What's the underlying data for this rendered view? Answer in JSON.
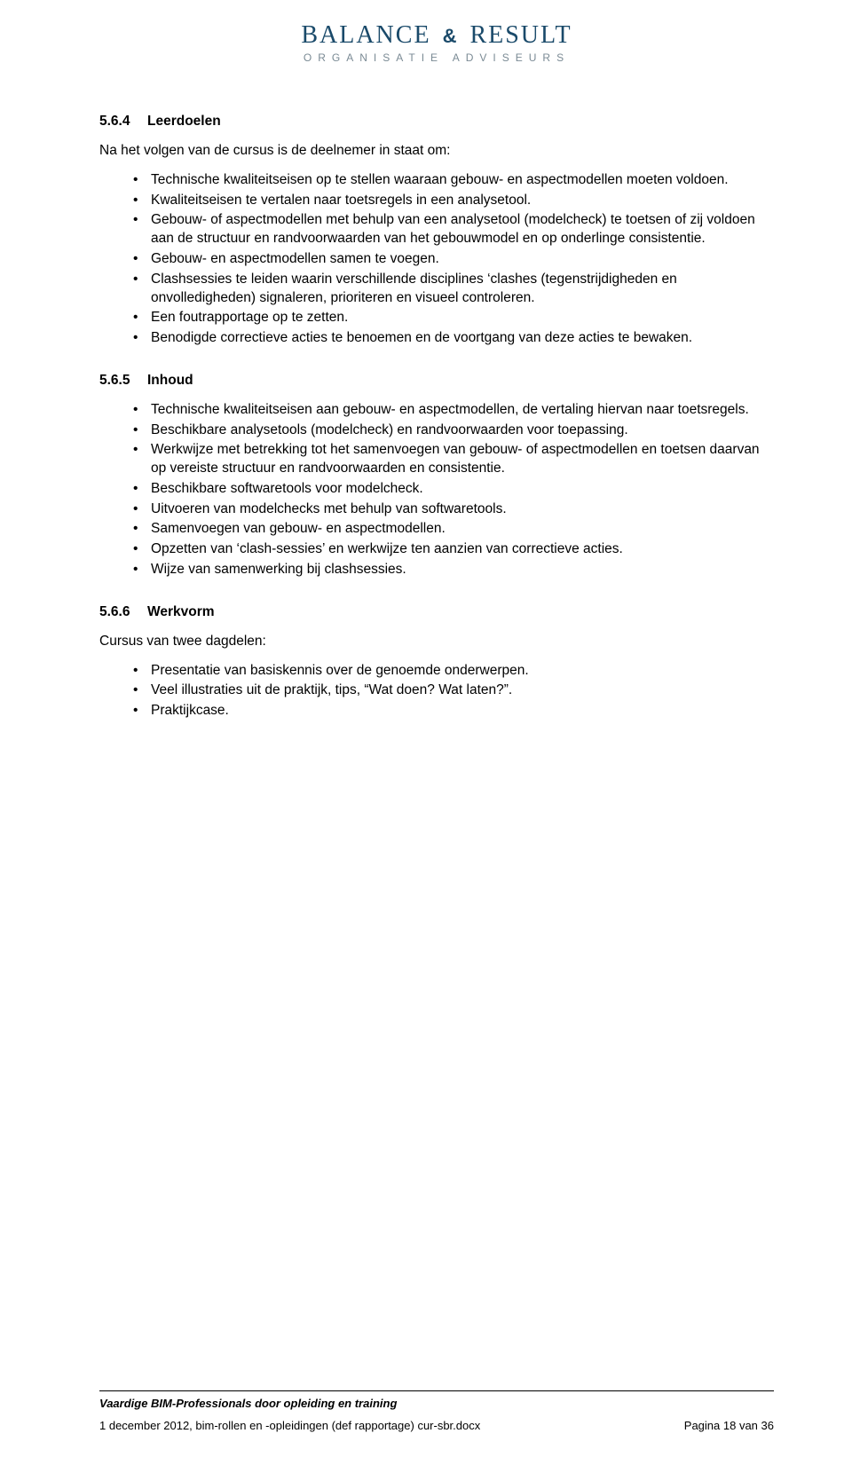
{
  "logo": {
    "word1": "BALANCE",
    "amp": "&",
    "word2": "RESULT",
    "sub": "ORGANISATIE ADVISEURS",
    "color_main": "#1a4a6a",
    "color_sub": "#7a8a94"
  },
  "sections": {
    "s1": {
      "num": "5.6.4",
      "title": "Leerdoelen",
      "lead": "Na het volgen van de cursus is de deelnemer in staat om:",
      "items": [
        "Technische kwaliteitseisen op te stellen waaraan gebouw- en aspectmodellen moeten voldoen.",
        "Kwaliteitseisen te vertalen naar toetsregels in een analysetool.",
        "Gebouw- of aspectmodellen met behulp van een analysetool (modelcheck) te toetsen of zij voldoen aan de structuur en randvoorwaarden van het gebouwmodel en op onderlinge consistentie.",
        "Gebouw- en aspectmodellen samen te voegen.",
        "Clashsessies te leiden waarin verschillende disciplines ‘clashes (tegenstrijdigheden en onvolledigheden) signaleren, prioriteren en visueel controleren.",
        "Een foutrapportage op te zetten.",
        "Benodigde correctieve acties te benoemen en de voortgang van deze acties te bewaken."
      ]
    },
    "s2": {
      "num": "5.6.5",
      "title": "Inhoud",
      "items": [
        "Technische kwaliteitseisen aan gebouw- en aspectmodellen, de vertaling hiervan naar toetsregels.",
        "Beschikbare analysetools (modelcheck) en randvoorwaarden voor toepassing.",
        "Werkwijze met betrekking tot het samenvoegen van gebouw- of aspectmodellen en toetsen daarvan op vereiste structuur en randvoorwaarden en consistentie.",
        "Beschikbare softwaretools voor modelcheck.",
        "Uitvoeren van modelchecks met behulp van softwaretools.",
        "Samenvoegen van gebouw- en aspectmodellen.",
        "Opzetten van ‘clash-sessies’ en werkwijze ten aanzien van correctieve acties.",
        "Wijze van samenwerking bij clashsessies."
      ]
    },
    "s3": {
      "num": "5.6.6",
      "title": "Werkvorm",
      "lead": "Cursus van twee dagdelen:",
      "items": [
        "Presentatie van basiskennis over de genoemde onderwerpen.",
        "Veel illustraties uit de praktijk, tips, “Wat doen? Wat laten?”.",
        "Praktijkcase."
      ]
    }
  },
  "footer": {
    "title": "Vaardige BIM-Professionals door opleiding en training",
    "left": "1 december 2012, bim-rollen en -opleidingen (def rapportage) cur-sbr.docx",
    "right_prefix": "Pagina ",
    "page_current": "18",
    "right_mid": " van ",
    "page_total": "36"
  }
}
